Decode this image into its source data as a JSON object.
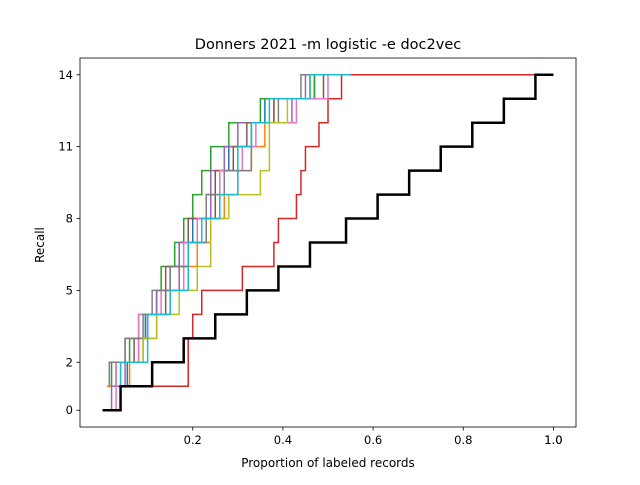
{
  "chart_data": {
    "type": "line",
    "step": "post",
    "title": "Donners 2021 -m logistic -e doc2vec",
    "xlabel": "Proportion of labeled records",
    "ylabel": "Recall",
    "xlim": [
      -0.05,
      1.05
    ],
    "ylim": [
      -0.7,
      14.7
    ],
    "xticks": [
      0.2,
      0.4,
      0.6,
      0.8,
      1.0
    ],
    "xtick_labels": [
      "0.2",
      "0.4",
      "0.6",
      "0.8",
      "1.0"
    ],
    "xtick_labels_duplicate_at_end": "1.0",
    "yticks": [
      0,
      2,
      5,
      8,
      11,
      14
    ],
    "ytick_labels": [
      "0",
      "2",
      "5",
      "8",
      "11",
      "14"
    ],
    "grid": false,
    "legend": "none",
    "series": [
      {
        "color": "#1f77b4",
        "points": [
          [
            0.01,
            0
          ],
          [
            0.04,
            0
          ],
          [
            0.04,
            1
          ],
          [
            0.055,
            1
          ],
          [
            0.055,
            2
          ],
          [
            0.08,
            2
          ],
          [
            0.08,
            3
          ],
          [
            0.095,
            3
          ],
          [
            0.095,
            4
          ],
          [
            0.12,
            4
          ],
          [
            0.12,
            5
          ],
          [
            0.15,
            5
          ],
          [
            0.15,
            6
          ],
          [
            0.17,
            6
          ],
          [
            0.17,
            7
          ],
          [
            0.2,
            7
          ],
          [
            0.2,
            8
          ],
          [
            0.23,
            8
          ],
          [
            0.23,
            9
          ],
          [
            0.25,
            9
          ],
          [
            0.25,
            10
          ],
          [
            0.28,
            10
          ],
          [
            0.28,
            11
          ],
          [
            0.33,
            11
          ],
          [
            0.33,
            12
          ],
          [
            0.36,
            12
          ],
          [
            0.36,
            13
          ],
          [
            0.47,
            13
          ],
          [
            0.47,
            14
          ],
          [
            0.62,
            14
          ],
          [
            0.62,
            14
          ],
          [
            0.63,
            14
          ]
        ]
      },
      {
        "color": "#ff7f0e",
        "points": [
          [
            0.01,
            1
          ],
          [
            0.06,
            1
          ],
          [
            0.06,
            2
          ],
          [
            0.09,
            2
          ],
          [
            0.09,
            3
          ],
          [
            0.12,
            3
          ],
          [
            0.12,
            4
          ],
          [
            0.15,
            4
          ],
          [
            0.15,
            5
          ],
          [
            0.17,
            5
          ],
          [
            0.17,
            6
          ],
          [
            0.21,
            6
          ],
          [
            0.21,
            7
          ],
          [
            0.24,
            7
          ],
          [
            0.24,
            8
          ],
          [
            0.27,
            8
          ],
          [
            0.27,
            9
          ],
          [
            0.3,
            9
          ],
          [
            0.3,
            10
          ],
          [
            0.33,
            10
          ],
          [
            0.33,
            11
          ],
          [
            0.36,
            11
          ],
          [
            0.36,
            12
          ],
          [
            0.38,
            12
          ],
          [
            0.38,
            13
          ],
          [
            0.46,
            13
          ],
          [
            0.46,
            14
          ],
          [
            0.53,
            14
          ]
        ]
      },
      {
        "color": "#2ca02c",
        "points": [
          [
            0.02,
            1
          ],
          [
            0.02,
            2
          ],
          [
            0.06,
            2
          ],
          [
            0.06,
            3
          ],
          [
            0.08,
            3
          ],
          [
            0.08,
            4
          ],
          [
            0.12,
            4
          ],
          [
            0.12,
            5
          ],
          [
            0.13,
            5
          ],
          [
            0.13,
            6
          ],
          [
            0.16,
            6
          ],
          [
            0.16,
            7
          ],
          [
            0.18,
            7
          ],
          [
            0.18,
            8
          ],
          [
            0.2,
            8
          ],
          [
            0.2,
            9
          ],
          [
            0.22,
            9
          ],
          [
            0.22,
            10
          ],
          [
            0.24,
            10
          ],
          [
            0.24,
            11
          ],
          [
            0.28,
            11
          ],
          [
            0.28,
            12
          ],
          [
            0.35,
            12
          ],
          [
            0.35,
            13
          ],
          [
            0.47,
            13
          ],
          [
            0.47,
            14
          ],
          [
            0.97,
            14
          ]
        ]
      },
      {
        "color": "#d62728",
        "points": [
          [
            0.05,
            1
          ],
          [
            0.19,
            1
          ],
          [
            0.19,
            3
          ],
          [
            0.2,
            3
          ],
          [
            0.2,
            4
          ],
          [
            0.22,
            4
          ],
          [
            0.22,
            5
          ],
          [
            0.31,
            5
          ],
          [
            0.31,
            6
          ],
          [
            0.38,
            6
          ],
          [
            0.38,
            7
          ],
          [
            0.39,
            7
          ],
          [
            0.39,
            8
          ],
          [
            0.43,
            8
          ],
          [
            0.43,
            9
          ],
          [
            0.44,
            9
          ],
          [
            0.44,
            10
          ],
          [
            0.45,
            10
          ],
          [
            0.45,
            11
          ],
          [
            0.48,
            11
          ],
          [
            0.48,
            12
          ],
          [
            0.5,
            12
          ],
          [
            0.5,
            13
          ],
          [
            0.53,
            13
          ],
          [
            0.53,
            14
          ],
          [
            0.97,
            14
          ]
        ]
      },
      {
        "color": "#9467bd",
        "points": [
          [
            0.01,
            0
          ],
          [
            0.02,
            0
          ],
          [
            0.02,
            1
          ],
          [
            0.05,
            1
          ],
          [
            0.05,
            3
          ],
          [
            0.1,
            3
          ],
          [
            0.1,
            4
          ],
          [
            0.12,
            4
          ],
          [
            0.12,
            5
          ],
          [
            0.17,
            5
          ],
          [
            0.17,
            7
          ],
          [
            0.22,
            7
          ],
          [
            0.22,
            8
          ],
          [
            0.24,
            8
          ],
          [
            0.24,
            10
          ],
          [
            0.27,
            10
          ],
          [
            0.27,
            11
          ],
          [
            0.3,
            11
          ],
          [
            0.3,
            12
          ],
          [
            0.42,
            12
          ],
          [
            0.42,
            13
          ],
          [
            0.45,
            13
          ],
          [
            0.45,
            14
          ],
          [
            0.49,
            14
          ]
        ]
      },
      {
        "color": "#8c564b",
        "points": [
          [
            0.03,
            1
          ],
          [
            0.03,
            2
          ],
          [
            0.07,
            2
          ],
          [
            0.07,
            3
          ],
          [
            0.1,
            3
          ],
          [
            0.1,
            4
          ],
          [
            0.14,
            4
          ],
          [
            0.14,
            6
          ],
          [
            0.19,
            6
          ],
          [
            0.19,
            8
          ],
          [
            0.25,
            8
          ],
          [
            0.25,
            10
          ],
          [
            0.29,
            10
          ],
          [
            0.29,
            11
          ],
          [
            0.32,
            11
          ],
          [
            0.32,
            12
          ],
          [
            0.38,
            12
          ],
          [
            0.38,
            13
          ],
          [
            0.49,
            13
          ],
          [
            0.49,
            14
          ],
          [
            0.51,
            14
          ]
        ]
      },
      {
        "color": "#e377c2",
        "points": [
          [
            0.02,
            0
          ],
          [
            0.03,
            0
          ],
          [
            0.03,
            2
          ],
          [
            0.08,
            2
          ],
          [
            0.08,
            4
          ],
          [
            0.13,
            4
          ],
          [
            0.13,
            5
          ],
          [
            0.18,
            5
          ],
          [
            0.18,
            7
          ],
          [
            0.21,
            7
          ],
          [
            0.21,
            8
          ],
          [
            0.26,
            8
          ],
          [
            0.26,
            10
          ],
          [
            0.31,
            10
          ],
          [
            0.31,
            11
          ],
          [
            0.34,
            11
          ],
          [
            0.34,
            12
          ],
          [
            0.43,
            12
          ],
          [
            0.43,
            13
          ],
          [
            0.5,
            13
          ],
          [
            0.5,
            14
          ],
          [
            0.55,
            14
          ]
        ]
      },
      {
        "color": "#7f7f7f",
        "points": [
          [
            0.015,
            1
          ],
          [
            0.015,
            2
          ],
          [
            0.05,
            2
          ],
          [
            0.05,
            3
          ],
          [
            0.09,
            3
          ],
          [
            0.09,
            4
          ],
          [
            0.11,
            4
          ],
          [
            0.11,
            5
          ],
          [
            0.15,
            5
          ],
          [
            0.15,
            6
          ],
          [
            0.19,
            6
          ],
          [
            0.19,
            7
          ],
          [
            0.23,
            7
          ],
          [
            0.23,
            9
          ],
          [
            0.27,
            9
          ],
          [
            0.27,
            10
          ],
          [
            0.33,
            10
          ],
          [
            0.33,
            12
          ],
          [
            0.39,
            12
          ],
          [
            0.39,
            13
          ],
          [
            0.44,
            13
          ],
          [
            0.44,
            14
          ],
          [
            0.52,
            14
          ]
        ]
      },
      {
        "color": "#bcbd22",
        "points": [
          [
            0.04,
            1
          ],
          [
            0.04,
            2
          ],
          [
            0.09,
            2
          ],
          [
            0.09,
            3
          ],
          [
            0.12,
            3
          ],
          [
            0.12,
            4
          ],
          [
            0.17,
            4
          ],
          [
            0.17,
            5
          ],
          [
            0.21,
            5
          ],
          [
            0.21,
            6
          ],
          [
            0.24,
            6
          ],
          [
            0.24,
            8
          ],
          [
            0.28,
            8
          ],
          [
            0.28,
            9
          ],
          [
            0.35,
            9
          ],
          [
            0.35,
            10
          ],
          [
            0.37,
            10
          ],
          [
            0.37,
            12
          ],
          [
            0.41,
            12
          ],
          [
            0.41,
            13
          ],
          [
            0.46,
            13
          ],
          [
            0.46,
            14
          ],
          [
            0.5,
            14
          ]
        ]
      },
      {
        "color": "#17becf",
        "points": [
          [
            0.02,
            0
          ],
          [
            0.04,
            0
          ],
          [
            0.04,
            2
          ],
          [
            0.1,
            2
          ],
          [
            0.1,
            4
          ],
          [
            0.15,
            4
          ],
          [
            0.15,
            5
          ],
          [
            0.19,
            5
          ],
          [
            0.19,
            7
          ],
          [
            0.22,
            7
          ],
          [
            0.22,
            8
          ],
          [
            0.26,
            8
          ],
          [
            0.26,
            9
          ],
          [
            0.3,
            9
          ],
          [
            0.3,
            11
          ],
          [
            0.33,
            11
          ],
          [
            0.33,
            12
          ],
          [
            0.37,
            12
          ],
          [
            0.37,
            13
          ],
          [
            0.46,
            13
          ],
          [
            0.46,
            14
          ],
          [
            0.55,
            14
          ]
        ]
      },
      {
        "color": "#000000",
        "width": 2.5,
        "points": [
          [
            0,
            0
          ],
          [
            0.04,
            0
          ],
          [
            0.04,
            1
          ],
          [
            0.11,
            1
          ],
          [
            0.11,
            2
          ],
          [
            0.18,
            2
          ],
          [
            0.18,
            3
          ],
          [
            0.25,
            3
          ],
          [
            0.25,
            4
          ],
          [
            0.32,
            4
          ],
          [
            0.32,
            5
          ],
          [
            0.39,
            5
          ],
          [
            0.39,
            6
          ],
          [
            0.46,
            6
          ],
          [
            0.46,
            7
          ],
          [
            0.54,
            7
          ],
          [
            0.54,
            8
          ],
          [
            0.61,
            8
          ],
          [
            0.61,
            9
          ],
          [
            0.68,
            9
          ],
          [
            0.68,
            10
          ],
          [
            0.75,
            10
          ],
          [
            0.75,
            11
          ],
          [
            0.82,
            11
          ],
          [
            0.82,
            12
          ],
          [
            0.89,
            12
          ],
          [
            0.89,
            13
          ],
          [
            0.96,
            13
          ],
          [
            0.96,
            14
          ],
          [
            1.0,
            14
          ]
        ]
      }
    ]
  }
}
